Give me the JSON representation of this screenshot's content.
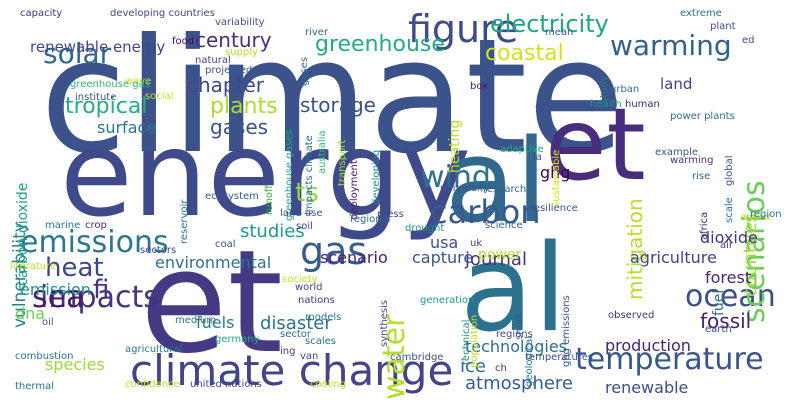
{
  "words": [
    {
      "text": "climate",
      "color": "#3b528b"
    },
    {
      "text": "energy",
      "color": "#3e4a89"
    },
    {
      "text": "et",
      "color": "#443983"
    },
    {
      "text": "al",
      "color": "#31688e"
    },
    {
      "text": "al",
      "color": "#2c728e"
    },
    {
      "text": "et",
      "color": "#472d7b"
    },
    {
      "text": "climate change",
      "color": "#414487"
    },
    {
      "text": "emissions",
      "color": "#2a788e"
    },
    {
      "text": "figure",
      "color": "#3e4c8a"
    },
    {
      "text": "warming",
      "color": "#33638d"
    },
    {
      "text": "gas",
      "color": "#365c8d"
    },
    {
      "text": "temperature",
      "color": "#39568c"
    },
    {
      "text": "impacts",
      "color": "#46337e"
    },
    {
      "text": "carbon",
      "color": "#38598c"
    },
    {
      "text": "heat",
      "color": "#3f4788"
    },
    {
      "text": "sea",
      "color": "#481b6d"
    },
    {
      "text": "wind",
      "color": "#2c718e"
    },
    {
      "text": "solar",
      "color": "#31678e"
    },
    {
      "text": "ocean",
      "color": "#3c4f8a"
    },
    {
      "text": "water",
      "color": "#b5de2b"
    },
    {
      "text": "scenarios",
      "color": "#6ccd5a"
    },
    {
      "text": "fi",
      "color": "#453581"
    },
    {
      "text": "ts",
      "color": "#8fd744"
    },
    {
      "text": "electricity",
      "color": "#21a685"
    },
    {
      "text": "storage",
      "color": "#3b528b"
    },
    {
      "text": "century",
      "color": "#46307e"
    },
    {
      "text": "greenhouse",
      "color": "#25ab82"
    },
    {
      "text": "coastal",
      "color": "#d2e21b"
    },
    {
      "text": "tropical",
      "color": "#27ad81"
    },
    {
      "text": "chapter",
      "color": "#3e4989"
    },
    {
      "text": "plants",
      "color": "#addc30"
    },
    {
      "text": "gases",
      "color": "#3a538b"
    },
    {
      "text": "renewable energy",
      "color": "#3e4989"
    },
    {
      "text": "vulnerability",
      "color": "#25858e"
    },
    {
      "text": "carbon dioxide",
      "color": "#1f9e89"
    },
    {
      "text": "surface",
      "color": "#2a788e"
    },
    {
      "text": "mitigation",
      "color": "#b5de2b"
    },
    {
      "text": "countries",
      "color": "#a2da37"
    },
    {
      "text": "ghg",
      "color": "#440154"
    },
    {
      "text": "studies",
      "color": "#1e9c89"
    },
    {
      "text": "emission",
      "color": "#21918c"
    },
    {
      "text": "dna",
      "color": "#6ece58"
    },
    {
      "text": "species",
      "color": "#9bd93c"
    },
    {
      "text": "environmental",
      "color": "#2d718e"
    },
    {
      "text": "disaster",
      "color": "#2c728e"
    },
    {
      "text": "fuels",
      "color": "#287c8e"
    },
    {
      "text": "usa",
      "color": "#3b528b"
    },
    {
      "text": "journal",
      "color": "#472f7d"
    },
    {
      "text": "fossil",
      "color": "#482374"
    },
    {
      "text": "ice",
      "color": "#31688e"
    },
    {
      "text": "atmosphere",
      "color": "#365d8d"
    },
    {
      "text": "renewable",
      "color": "#3d4e8a"
    },
    {
      "text": "technologies",
      "color": "#2e6e8e"
    },
    {
      "text": "production",
      "color": "#482475"
    },
    {
      "text": "agriculture",
      "color": "#404588"
    },
    {
      "text": "forest",
      "color": "#482677"
    },
    {
      "text": "dioxide",
      "color": "#453781"
    },
    {
      "text": "capture",
      "color": "#3a548c"
    },
    {
      "text": "scenario",
      "color": "#482173"
    },
    {
      "text": "power",
      "color": "#b8de29"
    },
    {
      "text": "land",
      "color": "#433e85"
    },
    {
      "text": "heating",
      "color": "#bddf26"
    },
    {
      "text": "fuel",
      "color": "#2d708e"
    },
    {
      "text": "capacity",
      "color": "#46337e"
    },
    {
      "text": "developing countries",
      "color": "#3e4989"
    },
    {
      "text": "variability",
      "color": "#3b528b"
    },
    {
      "text": "supply",
      "color": "#b5de2b"
    },
    {
      "text": "wave",
      "color": "#cde11d"
    },
    {
      "text": "social",
      "color": "#c2df23"
    },
    {
      "text": "food",
      "color": "#46085c"
    },
    {
      "text": "natural",
      "color": "#3f4788"
    },
    {
      "text": "projected",
      "color": "#3b528b"
    },
    {
      "text": "greenhouse gas",
      "color": "#35b779"
    },
    {
      "text": "institute",
      "color": "#39568c"
    },
    {
      "text": "river",
      "color": "#33638d"
    },
    {
      "text": "gases",
      "color": "#31688e"
    },
    {
      "text": "world",
      "color": "#3f4788"
    },
    {
      "text": "impacts climate",
      "color": "#2c728e"
    },
    {
      "text": "greenhouse gases",
      "color": "#20a486"
    },
    {
      "text": "australia",
      "color": "#32b67a"
    },
    {
      "text": "transport",
      "color": "#a8db34"
    },
    {
      "text": "developing",
      "color": "#218e8d"
    },
    {
      "text": "deployment",
      "color": "#482071"
    },
    {
      "text": "extreme",
      "color": "#2c728e"
    },
    {
      "text": "plant",
      "color": "#3b528b"
    },
    {
      "text": "ed",
      "color": "#3f4889"
    },
    {
      "text": "mean",
      "color": "#35608d"
    },
    {
      "text": "study",
      "color": "#2a788e"
    },
    {
      "text": "box",
      "color": "#481769"
    },
    {
      "text": "fl",
      "color": "#3e4989"
    },
    {
      "text": "human",
      "color": "#482576"
    },
    {
      "text": "urban",
      "color": "#2a768e"
    },
    {
      "text": "health",
      "color": "#21918c"
    },
    {
      "text": "adaptive",
      "color": "#27ad81"
    },
    {
      "text": "power plants",
      "color": "#2e6f8e"
    },
    {
      "text": "sustainable",
      "color": "#dde318"
    },
    {
      "text": "la",
      "color": "#3e4989"
    },
    {
      "text": "example",
      "color": "#39568c"
    },
    {
      "text": "warming",
      "color": "#46337e"
    },
    {
      "text": "global",
      "color": "#3b528b"
    },
    {
      "text": "scale",
      "color": "#2c728e"
    },
    {
      "text": "rise",
      "color": "#31688e"
    },
    {
      "text": "annex",
      "color": "#addc30"
    },
    {
      "text": "africa",
      "color": "#482475"
    },
    {
      "text": "research",
      "color": "#32648e"
    },
    {
      "text": "university",
      "color": "#3b528b"
    },
    {
      "text": "science",
      "color": "#35608d"
    },
    {
      "text": "resilience",
      "color": "#3b528b"
    },
    {
      "text": "drought",
      "color": "#20928c"
    },
    {
      "text": "press",
      "color": "#3e4989"
    },
    {
      "text": "regional",
      "color": "#31688e"
    },
    {
      "text": "soil",
      "color": "#3f4788"
    },
    {
      "text": "ecosystem",
      "color": "#365c8d"
    },
    {
      "text": "reservoir",
      "color": "#2c728e"
    },
    {
      "text": "runoff",
      "color": "#33b63a"
    },
    {
      "text": "land use",
      "color": "#3b528b"
    },
    {
      "text": "sectors",
      "color": "#3e4989"
    },
    {
      "text": "crop",
      "color": "#46337e"
    },
    {
      "text": "marine",
      "color": "#2c728e"
    },
    {
      "text": "coal",
      "color": "#3b528b"
    },
    {
      "text": "society",
      "color": "#c2df23"
    },
    {
      "text": "uk",
      "color": "#433e85"
    },
    {
      "text": "literature",
      "color": "#c2df23"
    },
    {
      "text": "air",
      "color": "#3f4788"
    },
    {
      "text": "region",
      "color": "#2c728e"
    },
    {
      "text": "regions",
      "color": "#3e4989"
    },
    {
      "text": "generation",
      "color": "#1f9e89"
    },
    {
      "text": "geological",
      "color": "#2a788e"
    },
    {
      "text": "small",
      "color": "#3b528b"
    },
    {
      "text": "ghg emissions",
      "color": "#39568c"
    },
    {
      "text": "population",
      "color": "#c2df23"
    },
    {
      "text": "technical",
      "color": "#21918c"
    },
    {
      "text": "synthesis",
      "color": "#3b528b"
    },
    {
      "text": "models",
      "color": "#2c728e"
    },
    {
      "text": "nations",
      "color": "#46337e"
    },
    {
      "text": "oil",
      "color": "#3b528b"
    },
    {
      "text": "medium",
      "color": "#2c728e"
    },
    {
      "text": "sector",
      "color": "#31688e"
    },
    {
      "text": "germany",
      "color": "#27ad81"
    },
    {
      "text": "van",
      "color": "#3e4989"
    },
    {
      "text": "scales",
      "color": "#2c728e"
    },
    {
      "text": "ing",
      "color": "#46337e"
    },
    {
      "text": "agricultural",
      "color": "#2a788e"
    },
    {
      "text": "combustion",
      "color": "#2c728e"
    },
    {
      "text": "cambridge",
      "color": "#3b528b"
    },
    {
      "text": "observed",
      "color": "#472f7d"
    },
    {
      "text": "earth",
      "color": "#3e4989"
    },
    {
      "text": "ch",
      "color": "#46337e"
    },
    {
      "text": "temperatures",
      "color": "#3b528b"
    },
    {
      "text": "thermal",
      "color": "#2c728e"
    },
    {
      "text": "confidence",
      "color": "#c2df23"
    },
    {
      "text": "united nations",
      "color": "#3e4989"
    },
    {
      "text": "cooling",
      "color": "#c2df23"
    }
  ]
}
